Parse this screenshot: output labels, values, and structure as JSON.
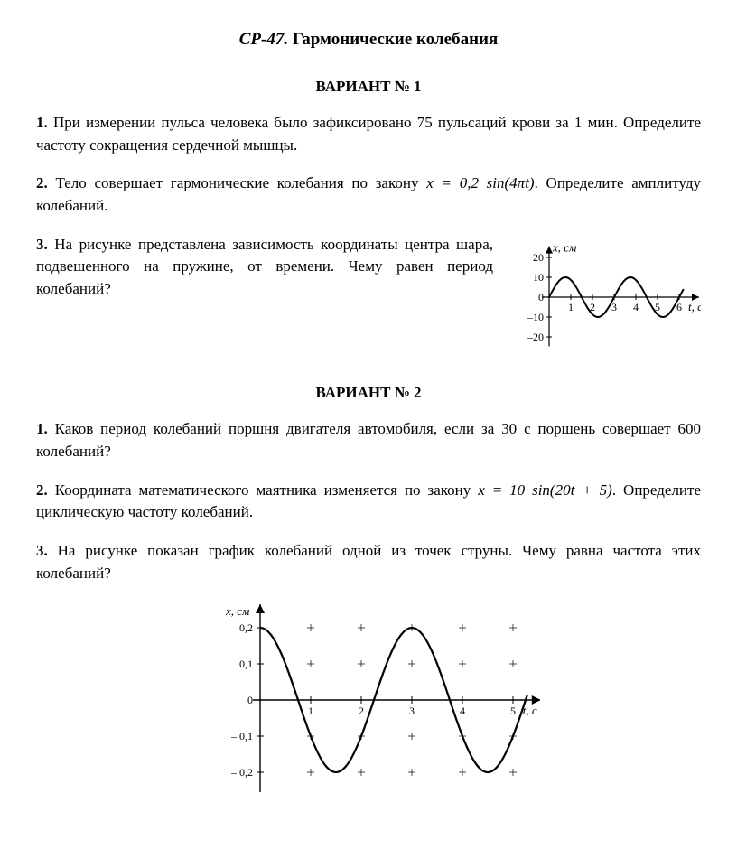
{
  "title_prefix": "СР-47.",
  "title_main": "Гармонические колебания",
  "variant1": {
    "heading": "ВАРИАНТ № 1",
    "p1_num": "1.",
    "p1_text": "При измерении пульса человека было зафиксировано 75 пульсаций крови за 1 мин. Определите частоту сокращения сердечной мышцы.",
    "p2_num": "2.",
    "p2_text_a": "Тело совершает гармонические колебания по закону ",
    "p2_formula": "x = 0,2 sin(4πt)",
    "p2_text_b": ". Определите амплитуду колебаний.",
    "p3_num": "3.",
    "p3_text": "На рисунке представлена зависимость координаты центра шара, подвешенного на пружине, от времени. Чему равен период колебаний?",
    "chart1": {
      "type": "line-oscillation",
      "ylabel": "x, см",
      "xlabel": "t, с",
      "yticks": [
        -20,
        -10,
        0,
        10,
        20
      ],
      "xticks": [
        1,
        2,
        3,
        4,
        5,
        6
      ],
      "amplitude": 10,
      "period": 3,
      "line_color": "#000000",
      "line_width": 2,
      "background": "#ffffff"
    }
  },
  "variant2": {
    "heading": "ВАРИАНТ № 2",
    "p1_num": "1.",
    "p1_text": "Каков период колебаний поршня двигателя автомобиля, если за 30 с поршень совершает 600 колебаний?",
    "p2_num": "2.",
    "p2_text_a": "Координата математического маятника изменяется по закону ",
    "p2_formula": "x = 10 sin(20t + 5)",
    "p2_text_b": ". Определите циклическую частоту колебаний.",
    "p3_num": "3.",
    "p3_text": "На рисунке показан график колебаний одной из точек струны. Чему равна частота этих колебаний?",
    "chart2": {
      "type": "line-oscillation",
      "ylabel": "x, см",
      "xlabel": "t, с",
      "yticks": [
        -0.2,
        -0.1,
        0,
        0.1,
        0.2
      ],
      "yticks_labels": [
        "– 0,2",
        "– 0,1",
        "0",
        "0,1",
        "0,2"
      ],
      "xticks": [
        1,
        2,
        3,
        4,
        5
      ],
      "amplitude": 0.2,
      "period": 3,
      "phase": "cos",
      "line_color": "#000000",
      "line_width": 2.2,
      "background": "#ffffff",
      "grid_marks": true
    }
  }
}
